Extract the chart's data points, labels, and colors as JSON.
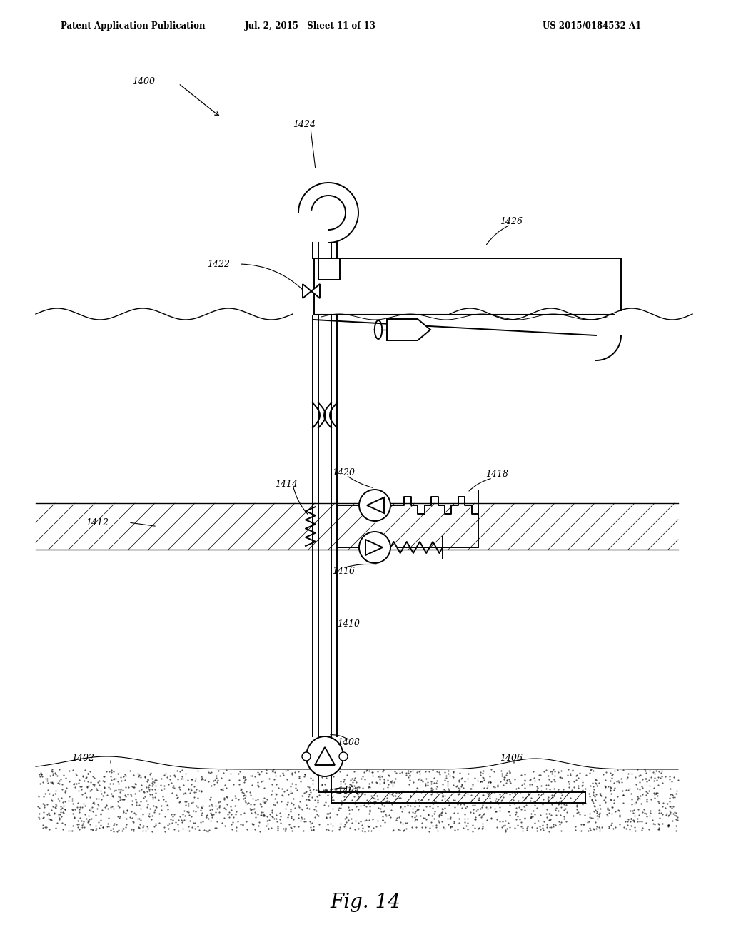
{
  "title": "Fig. 14",
  "header_left": "Patent Application Publication",
  "header_mid": "Jul. 2, 2015   Sheet 11 of 13",
  "header_right": "US 2015/0184532 A1",
  "bg_color": "#ffffff",
  "line_color": "#000000",
  "label_1400": "1400",
  "label_1402": "1402",
  "label_1404": "1404",
  "label_1406": "1406",
  "label_1408": "1408",
  "label_1410": "1410",
  "label_1412": "1412",
  "label_1414": "1414",
  "label_1416": "1416",
  "label_1418": "1418",
  "label_1420": "1420",
  "label_1422": "1422",
  "label_1424": "1424",
  "label_1426": "1426"
}
